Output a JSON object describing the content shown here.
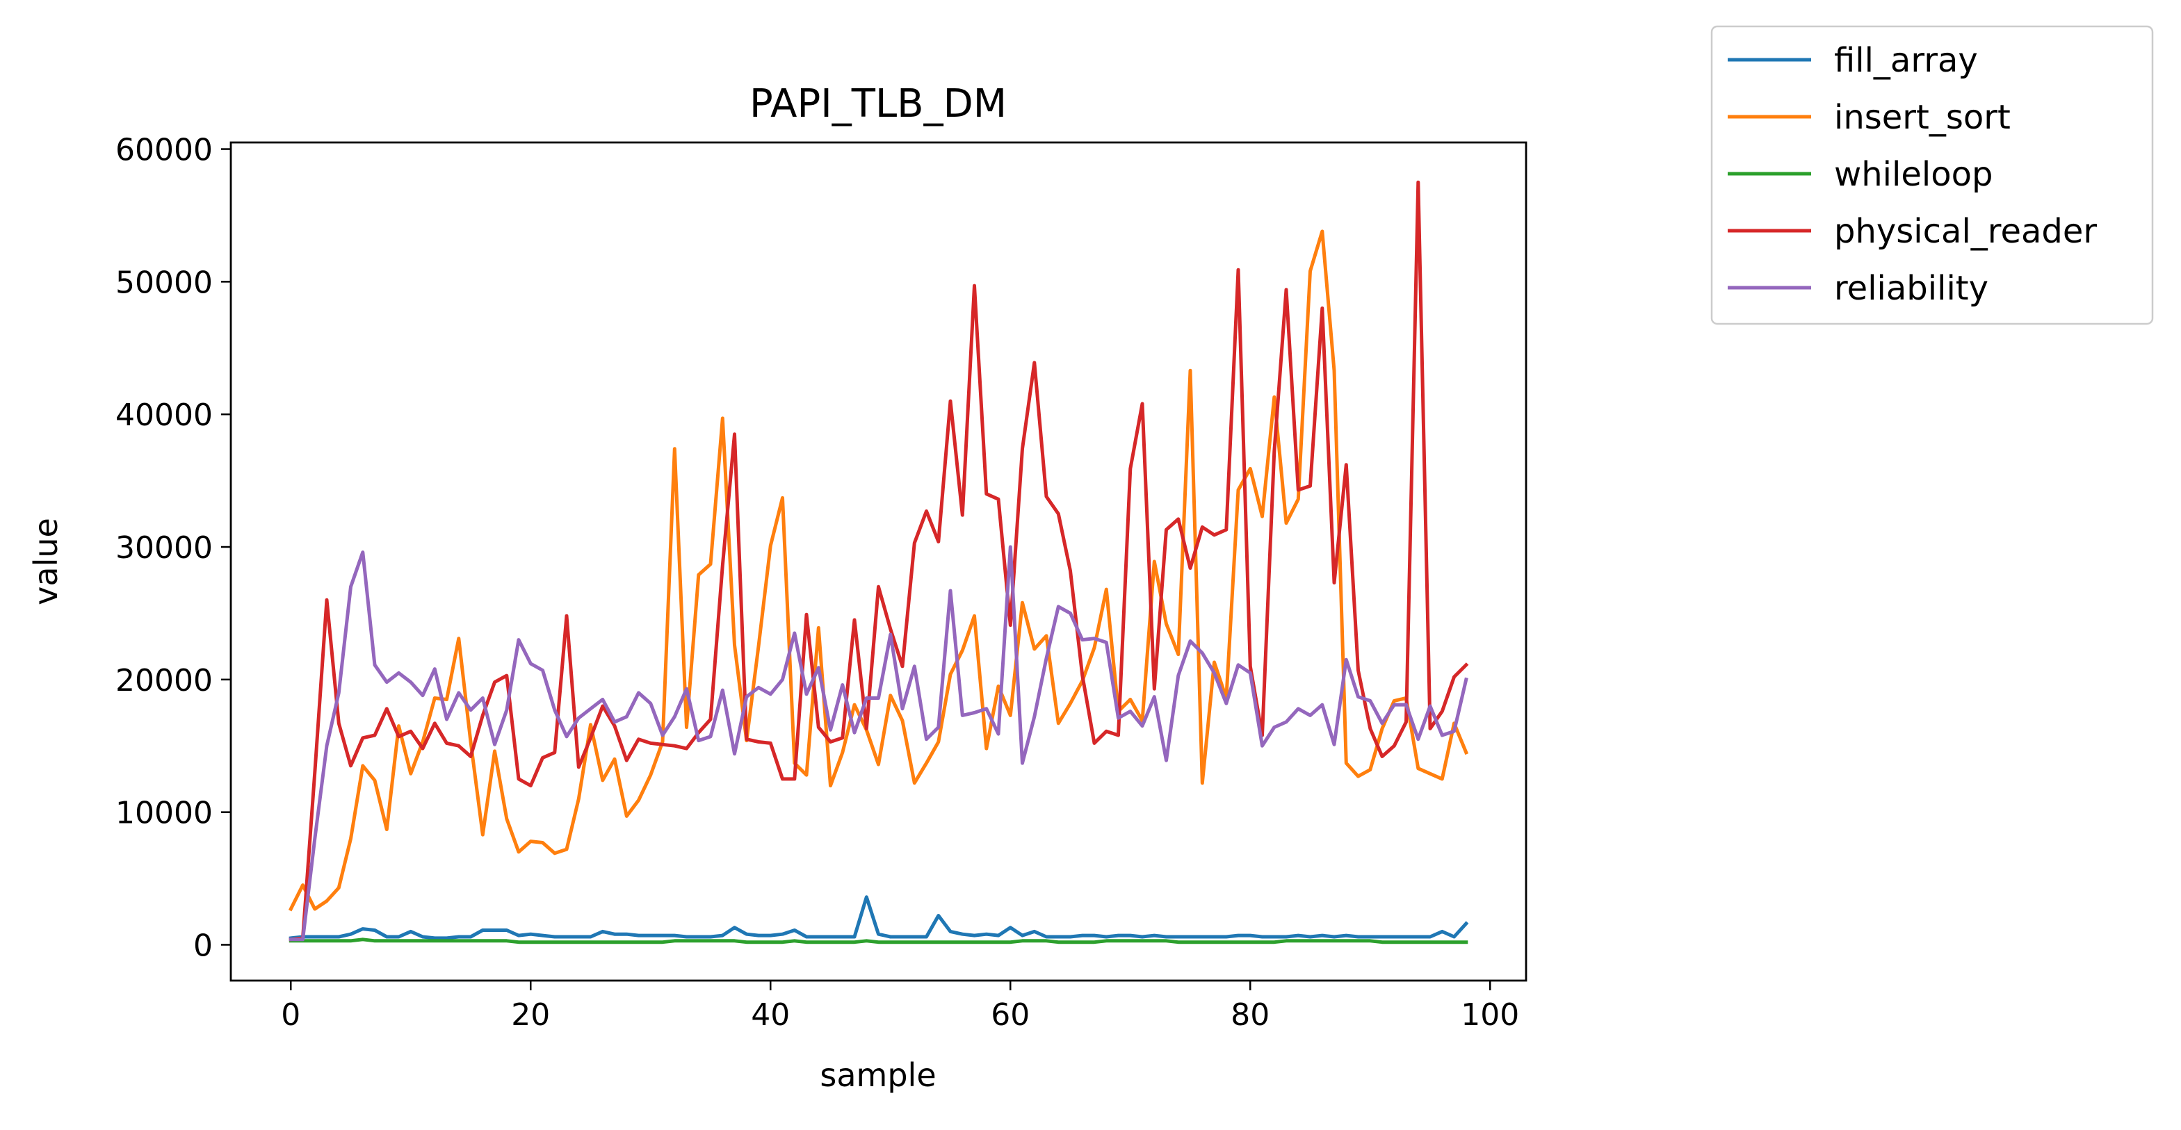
{
  "chart_data": {
    "type": "line",
    "title": "PAPI_TLB_DM",
    "xlabel": "sample",
    "ylabel": "value",
    "xlim": [
      -5,
      103
    ],
    "ylim": [
      -2700,
      60500
    ],
    "xticks": [
      0,
      20,
      40,
      60,
      80,
      100
    ],
    "yticks": [
      0,
      10000,
      20000,
      30000,
      40000,
      50000,
      60000
    ],
    "grid": false,
    "legend_position": "outside-top-right",
    "series": [
      {
        "name": "fill_array",
        "color": "#1f77b4",
        "values": [
          500,
          600,
          600,
          600,
          600,
          800,
          1200,
          1100,
          600,
          600,
          1000,
          600,
          500,
          500,
          600,
          600,
          1100,
          1100,
          1100,
          700,
          800,
          700,
          600,
          600,
          600,
          600,
          1000,
          800,
          800,
          700,
          700,
          700,
          700,
          600,
          600,
          600,
          700,
          1300,
          800,
          700,
          700,
          800,
          1100,
          600,
          600,
          600,
          600,
          600,
          3600,
          800,
          600,
          600,
          600,
          600,
          2200,
          1000,
          800,
          700,
          800,
          700,
          1300,
          700,
          1000,
          600,
          600,
          600,
          700,
          700,
          600,
          700,
          700,
          600,
          700,
          600,
          600,
          600,
          600,
          600,
          600,
          700,
          700,
          600,
          600,
          600,
          700,
          600,
          700,
          600,
          700,
          600,
          600,
          600,
          600,
          600,
          600,
          600,
          1000,
          600,
          1600
        ]
      },
      {
        "name": "insert_sort",
        "color": "#ff7f0e",
        "values": [
          2700,
          4500,
          2700,
          3300,
          4300,
          8000,
          13500,
          12400,
          8700,
          16500,
          12900,
          15300,
          18600,
          18500,
          23100,
          15300,
          8300,
          14600,
          9500,
          7000,
          7800,
          7700,
          6900,
          7200,
          11000,
          16600,
          12400,
          14000,
          9700,
          10900,
          12800,
          15300,
          37400,
          16400,
          27900,
          28700,
          39700,
          22600,
          15400,
          22500,
          30100,
          33700,
          13700,
          12800,
          23900,
          12000,
          14500,
          18100,
          16200,
          13600,
          18800,
          16900,
          12200,
          13700,
          15300,
          20400,
          22200,
          24800,
          14800,
          19500,
          17300,
          25800,
          22300,
          23300,
          16700,
          18200,
          19900,
          22400,
          26800,
          17600,
          18500,
          16900,
          28900,
          24200,
          21900,
          43300,
          12200,
          21300,
          18600,
          34300,
          35900,
          32300,
          41300,
          31800,
          33600,
          50800,
          53800,
          43300,
          13700,
          12700,
          13200,
          16300,
          18400,
          18600,
          13300,
          12900,
          12500,
          16700,
          14500
        ]
      },
      {
        "name": "whileloop",
        "color": "#2ca02c",
        "values": [
          300,
          300,
          300,
          300,
          300,
          300,
          400,
          300,
          300,
          300,
          300,
          300,
          300,
          300,
          300,
          300,
          300,
          300,
          300,
          200,
          200,
          200,
          200,
          200,
          200,
          200,
          200,
          200,
          200,
          200,
          200,
          200,
          300,
          300,
          300,
          300,
          300,
          300,
          200,
          200,
          200,
          200,
          300,
          200,
          200,
          200,
          200,
          200,
          300,
          200,
          200,
          200,
          200,
          200,
          200,
          200,
          200,
          200,
          200,
          200,
          200,
          300,
          300,
          300,
          200,
          200,
          200,
          200,
          300,
          300,
          300,
          300,
          300,
          300,
          200,
          200,
          200,
          200,
          200,
          200,
          200,
          200,
          200,
          300,
          300,
          300,
          300,
          300,
          300,
          300,
          300,
          200,
          200,
          200,
          200,
          200,
          200,
          200,
          200
        ]
      },
      {
        "name": "physical_reader",
        "color": "#d62728",
        "values": [
          400,
          500,
          13000,
          26000,
          16700,
          13500,
          15600,
          15800,
          17800,
          15700,
          16100,
          14800,
          16700,
          15200,
          15000,
          14200,
          17300,
          19800,
          20300,
          12500,
          12000,
          14100,
          14500,
          24800,
          13400,
          15600,
          18000,
          16500,
          13900,
          15500,
          15200,
          15100,
          15000,
          14800,
          16000,
          17000,
          28600,
          38500,
          15500,
          15300,
          15200,
          12500,
          12500,
          24900,
          16400,
          15300,
          15600,
          24500,
          16300,
          27000,
          23800,
          21000,
          30300,
          32700,
          30400,
          41000,
          32400,
          49700,
          34000,
          33600,
          24100,
          37400,
          43900,
          33800,
          32500,
          28200,
          20300,
          15200,
          16100,
          15800,
          35900,
          40800,
          19300,
          31300,
          32100,
          28400,
          31500,
          30900,
          31300,
          50900,
          21000,
          15800,
          37200,
          49400,
          34300,
          34600,
          48000,
          27300,
          36200,
          20700,
          16300,
          14200,
          15000,
          16800,
          57500,
          16300,
          17600,
          20200,
          21100
        ]
      },
      {
        "name": "reliability",
        "color": "#9467bd",
        "values": [
          400,
          400,
          8000,
          15000,
          19000,
          27000,
          29600,
          21100,
          19800,
          20500,
          19800,
          18800,
          20800,
          17000,
          19000,
          17700,
          18600,
          15100,
          17700,
          23000,
          21200,
          20700,
          17700,
          15700,
          17100,
          17800,
          18500,
          16800,
          17200,
          19000,
          18200,
          15800,
          17200,
          19300,
          15400,
          15700,
          19200,
          14400,
          18700,
          19400,
          18900,
          20000,
          23500,
          18900,
          20900,
          16200,
          19600,
          16000,
          18600,
          18600,
          23400,
          17800,
          21000,
          15500,
          16400,
          26700,
          17300,
          17500,
          17800,
          15900,
          30000,
          13700,
          17200,
          21600,
          25500,
          25000,
          23000,
          23100,
          22800,
          17100,
          17600,
          16500,
          18700,
          13900,
          20300,
          22900,
          22000,
          20500,
          18200,
          21100,
          20500,
          15000,
          16400,
          16800,
          17800,
          17300,
          18100,
          15100,
          21500,
          18700,
          18400,
          16700,
          18100,
          18100,
          15500,
          18000,
          15800,
          16100,
          20000
        ]
      }
    ]
  }
}
